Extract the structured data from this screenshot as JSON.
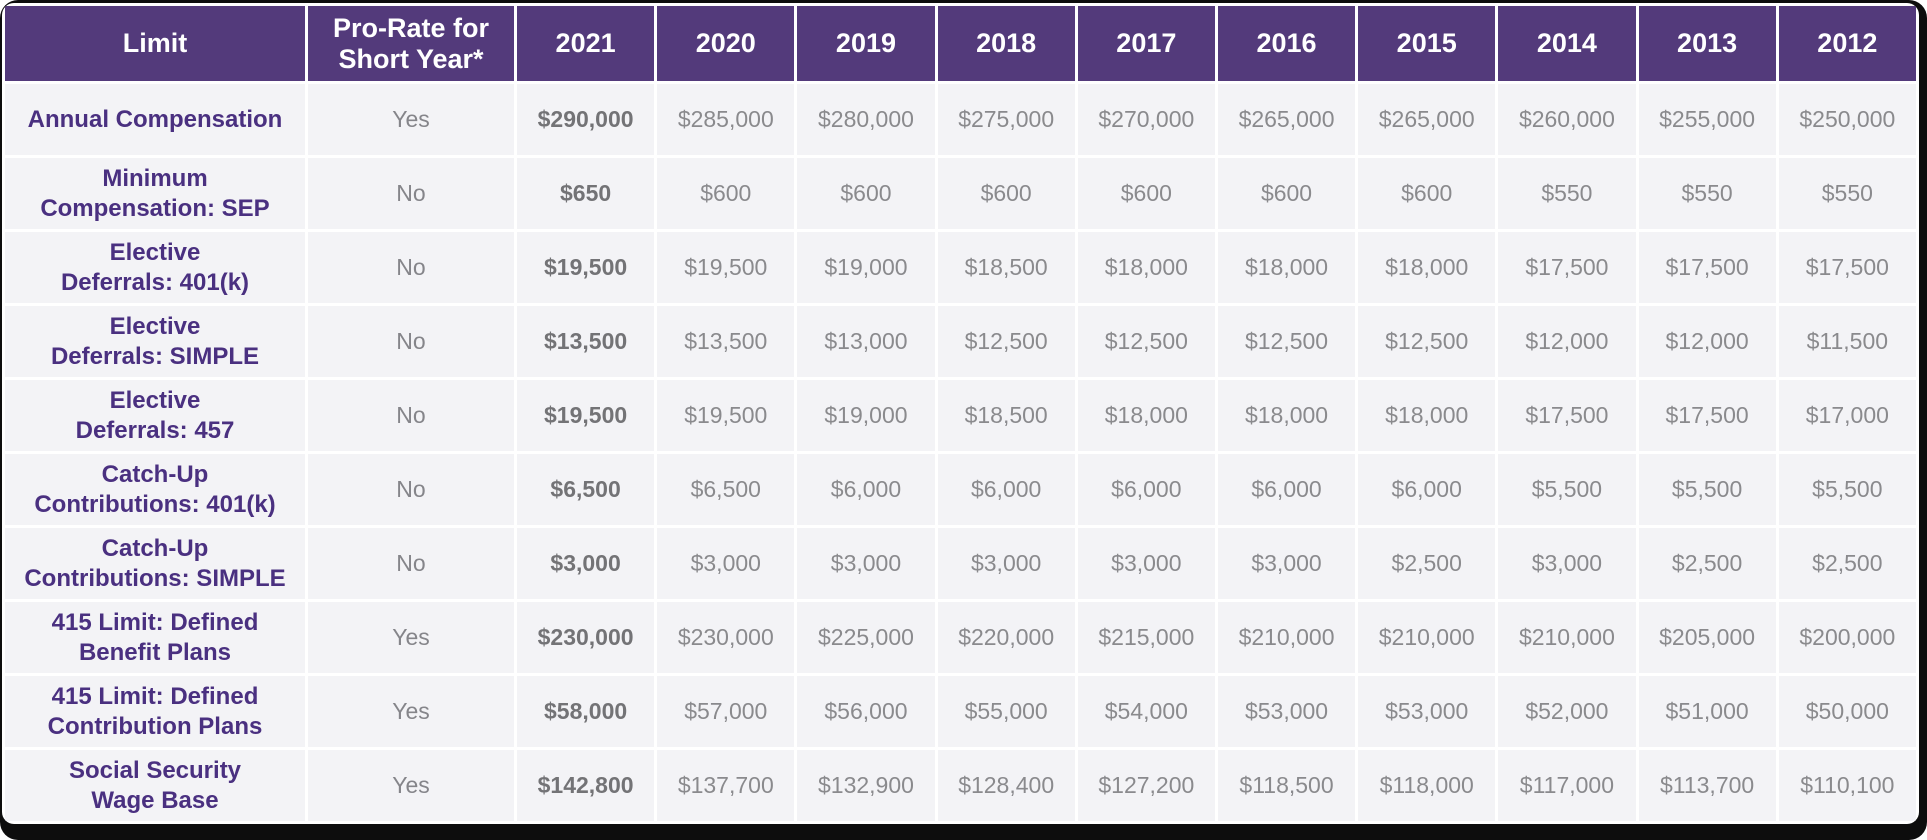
{
  "theme": {
    "header_bg": "#533A7B",
    "header_text": "#FFFFFF",
    "cell_bg": "#F3F3F6",
    "label_color": "#4A3080",
    "value_color": "#8A8A8D",
    "current_year_value_color": "#737376",
    "frame_color": "#0D0D0D",
    "gap_color": "#FFFFFF"
  },
  "table": {
    "columns": {
      "limit": "Limit",
      "prorate": "Pro-Rate for\nShort Year*",
      "years": [
        "2021",
        "2020",
        "2019",
        "2018",
        "2017",
        "2016",
        "2015",
        "2014",
        "2013",
        "2012"
      ]
    },
    "rows": [
      {
        "label": "Annual Compensation",
        "prorate": "Yes",
        "values": [
          "$290,000",
          "$285,000",
          "$280,000",
          "$275,000",
          "$270,000",
          "$265,000",
          "$265,000",
          "$260,000",
          "$255,000",
          "$250,000"
        ]
      },
      {
        "label": "Minimum\nCompensation: SEP",
        "prorate": "No",
        "values": [
          "$650",
          "$600",
          "$600",
          "$600",
          "$600",
          "$600",
          "$600",
          "$550",
          "$550",
          "$550"
        ]
      },
      {
        "label": "Elective\nDeferrals: 401(k)",
        "prorate": "No",
        "values": [
          "$19,500",
          "$19,500",
          "$19,000",
          "$18,500",
          "$18,000",
          "$18,000",
          "$18,000",
          "$17,500",
          "$17,500",
          "$17,500"
        ]
      },
      {
        "label": "Elective\nDeferrals: SIMPLE",
        "prorate": "No",
        "values": [
          "$13,500",
          "$13,500",
          "$13,000",
          "$12,500",
          "$12,500",
          "$12,500",
          "$12,500",
          "$12,000",
          "$12,000",
          "$11,500"
        ]
      },
      {
        "label": "Elective\nDeferrals: 457",
        "prorate": "No",
        "values": [
          "$19,500",
          "$19,500",
          "$19,000",
          "$18,500",
          "$18,000",
          "$18,000",
          "$18,000",
          "$17,500",
          "$17,500",
          "$17,000"
        ]
      },
      {
        "label": "Catch-Up\nContributions: 401(k)",
        "prorate": "No",
        "values": [
          "$6,500",
          "$6,500",
          "$6,000",
          "$6,000",
          "$6,000",
          "$6,000",
          "$6,000",
          "$5,500",
          "$5,500",
          "$5,500"
        ]
      },
      {
        "label": "Catch-Up\nContributions: SIMPLE",
        "prorate": "No",
        "values": [
          "$3,000",
          "$3,000",
          "$3,000",
          "$3,000",
          "$3,000",
          "$3,000",
          "$2,500",
          "$3,000",
          "$2,500",
          "$2,500"
        ]
      },
      {
        "label": "415 Limit: Defined\nBenefit Plans",
        "prorate": "Yes",
        "values": [
          "$230,000",
          "$230,000",
          "$225,000",
          "$220,000",
          "$215,000",
          "$210,000",
          "$210,000",
          "$210,000",
          "$205,000",
          "$200,000"
        ]
      },
      {
        "label": "415 Limit: Defined\nContribution Plans",
        "prorate": "Yes",
        "values": [
          "$58,000",
          "$57,000",
          "$56,000",
          "$55,000",
          "$54,000",
          "$53,000",
          "$53,000",
          "$52,000",
          "$51,000",
          "$50,000"
        ]
      },
      {
        "label": "Social Security\nWage Base",
        "prorate": "Yes",
        "values": [
          "$142,800",
          "$137,700",
          "$132,900",
          "$128,400",
          "$127,200",
          "$118,500",
          "$118,000",
          "$117,000",
          "$113,700",
          "$110,100"
        ]
      }
    ]
  },
  "chart_data": {
    "type": "table",
    "columns": [
      "Limit",
      "Pro-Rate for Short Year*",
      "2021",
      "2020",
      "2019",
      "2018",
      "2017",
      "2016",
      "2015",
      "2014",
      "2013",
      "2012"
    ],
    "rows": [
      [
        "Annual Compensation",
        "Yes",
        "$290,000",
        "$285,000",
        "$280,000",
        "$275,000",
        "$270,000",
        "$265,000",
        "$265,000",
        "$260,000",
        "$255,000",
        "$250,000"
      ],
      [
        "Minimum Compensation: SEP",
        "No",
        "$650",
        "$600",
        "$600",
        "$600",
        "$600",
        "$600",
        "$600",
        "$550",
        "$550",
        "$550"
      ],
      [
        "Elective Deferrals: 401(k)",
        "No",
        "$19,500",
        "$19,500",
        "$19,000",
        "$18,500",
        "$18,000",
        "$18,000",
        "$18,000",
        "$17,500",
        "$17,500",
        "$17,500"
      ],
      [
        "Elective Deferrals: SIMPLE",
        "No",
        "$13,500",
        "$13,500",
        "$13,000",
        "$12,500",
        "$12,500",
        "$12,500",
        "$12,500",
        "$12,000",
        "$12,000",
        "$11,500"
      ],
      [
        "Elective Deferrals: 457",
        "No",
        "$19,500",
        "$19,500",
        "$19,000",
        "$18,500",
        "$18,000",
        "$18,000",
        "$18,000",
        "$17,500",
        "$17,500",
        "$17,000"
      ],
      [
        "Catch-Up Contributions: 401(k)",
        "No",
        "$6,500",
        "$6,500",
        "$6,000",
        "$6,000",
        "$6,000",
        "$6,000",
        "$6,000",
        "$5,500",
        "$5,500",
        "$5,500"
      ],
      [
        "Catch-Up Contributions: SIMPLE",
        "No",
        "$3,000",
        "$3,000",
        "$3,000",
        "$3,000",
        "$3,000",
        "$3,000",
        "$2,500",
        "$3,000",
        "$2,500",
        "$2,500"
      ],
      [
        "415 Limit: Defined Benefit Plans",
        "Yes",
        "$230,000",
        "$230,000",
        "$225,000",
        "$220,000",
        "$215,000",
        "$210,000",
        "$210,000",
        "$210,000",
        "$205,000",
        "$200,000"
      ],
      [
        "415 Limit: Defined Contribution Plans",
        "Yes",
        "$58,000",
        "$57,000",
        "$56,000",
        "$55,000",
        "$54,000",
        "$53,000",
        "$53,000",
        "$52,000",
        "$51,000",
        "$50,000"
      ],
      [
        "Social Security Wage Base",
        "Yes",
        "$142,800",
        "$137,700",
        "$132,900",
        "$128,400",
        "$127,200",
        "$118,500",
        "$118,000",
        "$117,000",
        "$113,700",
        "$110,100"
      ]
    ]
  }
}
